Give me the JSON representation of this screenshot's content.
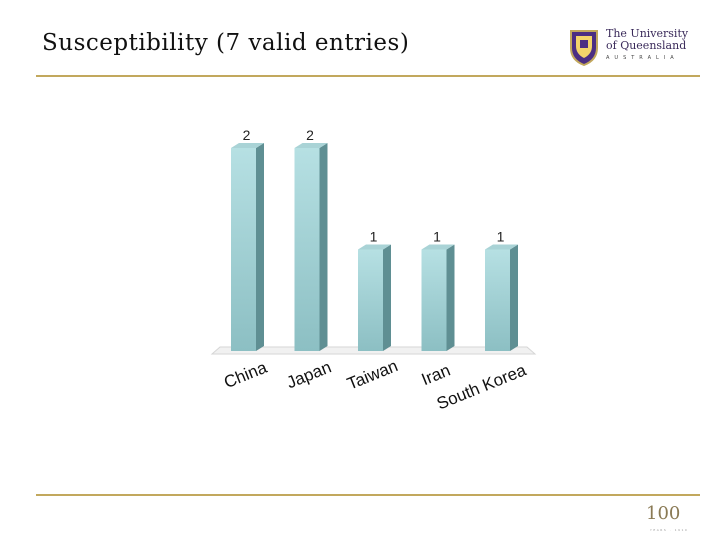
{
  "slide": {
    "title": "Susceptibility (7 valid entries)"
  },
  "logo": {
    "line1": "The University",
    "line2": "of Queensland",
    "line3": "AUSTRALIA"
  },
  "centenary_logo": {
    "number": "100",
    "subtitle": "YEARS · 1910"
  },
  "colors": {
    "bar": "#8fc8cc",
    "accent_rule": "#c2a85d"
  },
  "chart_data": {
    "type": "bar",
    "title": "",
    "categories": [
      "China",
      "Japan",
      "Taiwan",
      "Iran",
      "South Korea"
    ],
    "values": [
      2,
      2,
      1,
      1,
      1
    ],
    "data_labels": [
      "2",
      "2",
      "1",
      "1",
      "1"
    ],
    "ylim": [
      0,
      2
    ],
    "grid": false,
    "legend": "none"
  }
}
